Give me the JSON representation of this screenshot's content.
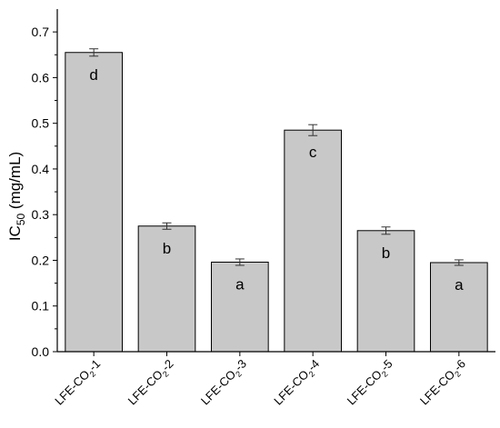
{
  "chart_data": {
    "type": "bar",
    "categories": [
      {
        "base": "LFE-CO",
        "sub": "2",
        "suffix": "-1"
      },
      {
        "base": "LFE-CO",
        "sub": "2",
        "suffix": "-2"
      },
      {
        "base": "LFE-CO",
        "sub": "2",
        "suffix": "-3"
      },
      {
        "base": "LFE-CO",
        "sub": "2",
        "suffix": "-4"
      },
      {
        "base": "LFE-CO",
        "sub": "2",
        "suffix": "-5"
      },
      {
        "base": "LFE-CO",
        "sub": "2",
        "suffix": "-6"
      }
    ],
    "values": [
      0.655,
      0.275,
      0.196,
      0.485,
      0.265,
      0.195
    ],
    "errors": [
      0.008,
      0.007,
      0.007,
      0.012,
      0.008,
      0.006
    ],
    "significance_labels": [
      "d",
      "b",
      "a",
      "c",
      "b",
      "a"
    ],
    "ylabel": {
      "base": "IC",
      "sub": "50",
      "suffix": " (mg/mL)"
    },
    "ylim": [
      0,
      0.75
    ],
    "yticks": [
      "0.0",
      "0.1",
      "0.2",
      "0.3",
      "0.4",
      "0.5",
      "0.6",
      "0.7"
    ],
    "bar_color": "#c8c8c8",
    "edge_color": "#000000",
    "grid": false
  }
}
